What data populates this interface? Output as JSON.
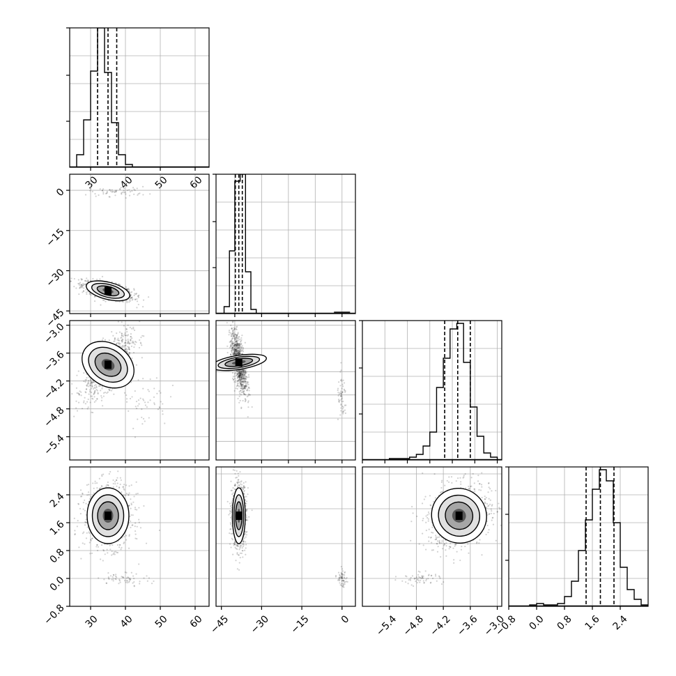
{
  "figure": {
    "type": "corner-plot",
    "grid": true
  },
  "chart_data": [
    {
      "id": "hist-p0",
      "type": "bar",
      "row": 0,
      "col": 0,
      "xlim": [
        24,
        64
      ],
      "ylim": [
        0,
        1
      ],
      "bins_x": [
        24,
        26,
        28,
        30,
        32,
        34,
        36,
        38,
        40,
        42,
        44,
        46,
        48
      ],
      "values": [
        0.0,
        0.09,
        0.34,
        0.69,
        1.0,
        0.68,
        0.32,
        0.09,
        0.02,
        0.0,
        0.0,
        0.0
      ],
      "quantiles": [
        32.0,
        35.0,
        37.5
      ],
      "xticks": [
        30,
        40,
        50,
        60
      ],
      "xtick_labels": [
        "30",
        "40",
        "50",
        "60"
      ]
    },
    {
      "id": "scatter-p1-p0",
      "type": "scatter",
      "row": 1,
      "col": 0,
      "xlim": [
        24,
        64
      ],
      "ylim": [
        -46,
        6
      ],
      "main_cluster": {
        "cx": 35,
        "cy": -37.5,
        "sx": 3.2,
        "sy": 1.6,
        "corr": -0.6
      },
      "minor_cluster": {
        "cx": 38,
        "cy": -0.5,
        "sx": 7,
        "sy": 1.5
      },
      "yticks": [
        0,
        -15,
        -30,
        -45
      ],
      "ytick_labels": [
        "0",
        "−15",
        "−30",
        "−45"
      ]
    },
    {
      "id": "hist-p1",
      "type": "bar",
      "row": 1,
      "col": 1,
      "xlim": [
        -47,
        5
      ],
      "ylim": [
        0,
        1
      ],
      "bins_x": [
        -44,
        -42,
        -40,
        -38,
        -36,
        -34,
        -32,
        -30
      ],
      "values": [
        0.05,
        0.45,
        0.95,
        1.0,
        0.3,
        0.03,
        0.0
      ],
      "tail": {
        "from": -3,
        "to": 3,
        "value": 0.01
      },
      "quantiles": [
        -39.8,
        -38.5,
        -37.2
      ]
    },
    {
      "id": "scatter-p2-p0",
      "type": "scatter",
      "row": 2,
      "col": 0,
      "xlim": [
        24,
        64
      ],
      "ylim": [
        -5.9,
        -2.9
      ],
      "main_cluster": {
        "cx": 35,
        "cy": -3.85,
        "sx": 3.0,
        "sy": 0.3,
        "corr": 0.7
      },
      "minor_cluster": {
        "cx": 45,
        "cy": -4.6,
        "sx": 6,
        "sy": 0.5
      },
      "yticks": [
        -3.0,
        -3.6,
        -4.2,
        -4.8,
        -5.4
      ],
      "ytick_labels": [
        "−3.0",
        "−3.6",
        "−4.2",
        "−4.8",
        "−5.4"
      ]
    },
    {
      "id": "scatter-p2-p1",
      "type": "scatter",
      "row": 2,
      "col": 1,
      "xlim": [
        -47,
        5
      ],
      "ylim": [
        -5.9,
        -2.9
      ],
      "main_cluster": {
        "cx": -38.5,
        "cy": -3.8,
        "sx": 1.3,
        "sy": 0.3,
        "corr": -0.6
      },
      "minor_cluster": {
        "cx": 0,
        "cy": -4.6,
        "sx": 1.5,
        "sy": 0.4
      }
    },
    {
      "id": "hist-p2",
      "type": "bar",
      "row": 2,
      "col": 2,
      "xlim": [
        -6.0,
        -2.9
      ],
      "ylim": [
        0,
        1
      ],
      "bins_x": [
        -5.4,
        -5.25,
        -5.1,
        -4.95,
        -4.8,
        -4.65,
        -4.5,
        -4.35,
        -4.2,
        -4.05,
        -3.9,
        -3.75,
        -3.6,
        -3.45,
        -3.3,
        -3.15,
        -3.0
      ],
      "values": [
        0.01,
        0.01,
        0.01,
        0.02,
        0.04,
        0.1,
        0.2,
        0.52,
        0.73,
        0.94,
        0.98,
        0.7,
        0.38,
        0.17,
        0.05,
        0.02
      ],
      "quantiles": [
        -4.17,
        -3.88,
        -3.6
      ]
    },
    {
      "id": "scatter-p3-p0",
      "type": "scatter",
      "row": 3,
      "col": 0,
      "xlim": [
        24,
        64
      ],
      "ylim": [
        -0.8,
        3.2
      ],
      "main_cluster": {
        "cx": 35,
        "cy": 1.8,
        "sx": 3.0,
        "sy": 0.4,
        "corr": 0.0
      },
      "minor_cluster": {
        "cx": 40,
        "cy": 0.0,
        "sx": 6,
        "sy": 0.15
      },
      "yticks": [
        2.4,
        1.6,
        0.8,
        0.0,
        -0.8
      ],
      "ytick_labels": [
        "2.4",
        "1.6",
        "0.8",
        "0.0",
        "−0.8"
      ],
      "xticks": [
        30,
        40,
        50,
        60
      ],
      "xtick_labels": [
        "30",
        "40",
        "50",
        "60"
      ]
    },
    {
      "id": "scatter-p3-p1",
      "type": "scatter",
      "row": 3,
      "col": 1,
      "xlim": [
        -47,
        5
      ],
      "ylim": [
        -0.8,
        3.2
      ],
      "main_cluster": {
        "cx": -38.5,
        "cy": 1.8,
        "sx": 1.2,
        "sy": 0.4,
        "corr": 0.0
      },
      "minor_cluster": {
        "cx": 0,
        "cy": 0.0,
        "sx": 1.5,
        "sy": 0.2
      },
      "xticks": [
        -45,
        -30,
        -15,
        0
      ],
      "xtick_labels": [
        "−45",
        "−30",
        "−15",
        "0"
      ]
    },
    {
      "id": "scatter-p3-p2",
      "type": "scatter",
      "row": 3,
      "col": 2,
      "xlim": [
        -6.0,
        -2.9
      ],
      "ylim": [
        -0.8,
        3.2
      ],
      "main_cluster": {
        "cx": -3.85,
        "cy": 1.8,
        "sx": 0.3,
        "sy": 0.4,
        "corr": 0.2
      },
      "minor_cluster": {
        "cx": -4.7,
        "cy": 0.0,
        "sx": 0.4,
        "sy": 0.15
      },
      "xticks": [
        -5.4,
        -4.8,
        -4.2,
        -3.6,
        -3.0
      ],
      "xtick_labels": [
        "−5.4",
        "−4.8",
        "−4.2",
        "−3.6",
        "−3.0"
      ]
    },
    {
      "id": "hist-p3",
      "type": "bar",
      "row": 3,
      "col": 3,
      "xlim": [
        -0.8,
        3.2
      ],
      "ylim": [
        0,
        1
      ],
      "bins_x": [
        -0.2,
        0.0,
        0.2,
        0.4,
        0.6,
        0.8,
        1.0,
        1.2,
        1.4,
        1.6,
        1.8,
        2.0,
        2.2,
        2.4,
        2.6,
        2.8,
        3.0,
        3.2
      ],
      "values": [
        0.01,
        0.02,
        0.01,
        0.01,
        0.02,
        0.07,
        0.18,
        0.4,
        0.62,
        0.84,
        0.98,
        0.9,
        0.6,
        0.28,
        0.12,
        0.05,
        0.01
      ],
      "quantiles": [
        1.42,
        1.83,
        2.22
      ],
      "xticks": [
        -0.8,
        0.0,
        0.8,
        1.6,
        2.4
      ],
      "xtick_labels": [
        "−0.8",
        "0.0",
        "0.8",
        "1.6",
        "2.4"
      ]
    }
  ]
}
